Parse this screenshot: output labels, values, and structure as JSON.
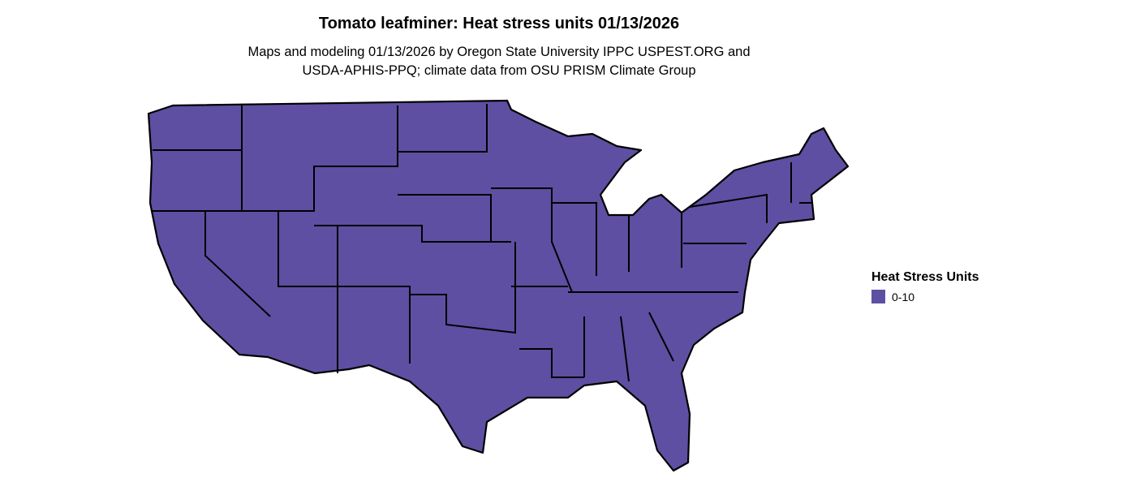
{
  "title": "Tomato leafminer: Heat stress units 01/13/2026",
  "subtitle_lines": [
    "Maps and modeling 01/13/2026 by Oregon State University IPPC USPEST.ORG and",
    "USDA-APHIS-PPQ; climate data from OSU PRISM Climate Group"
  ],
  "map": {
    "region": "Contiguous United States",
    "fill_color": "#5e4fa2",
    "border_color": "#000000"
  },
  "legend": {
    "title": "Heat Stress Units",
    "items": [
      {
        "label": "0-10",
        "color": "#5e4fa2"
      }
    ]
  }
}
